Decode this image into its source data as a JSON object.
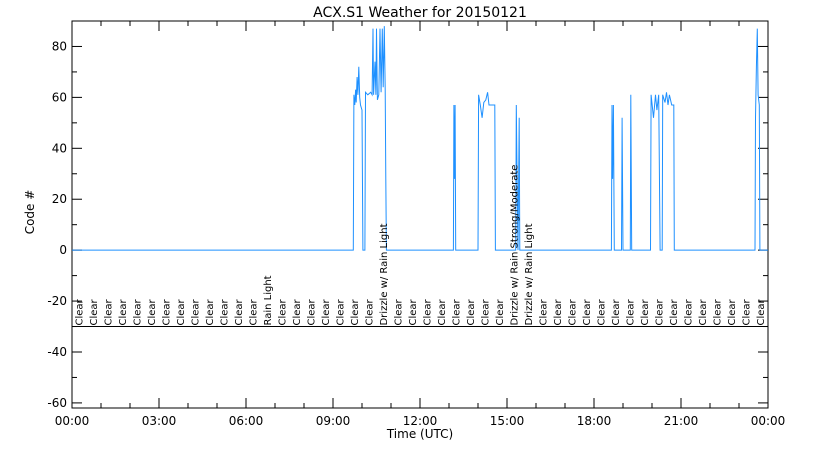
{
  "chart_data": {
    "type": "line",
    "title": "ACX.S1 Weather for 20150121",
    "xlabel": "Time (UTC)",
    "ylabel": "Code #",
    "xlim": [
      0,
      24
    ],
    "ylim": [
      -62,
      90
    ],
    "xticks": [
      {
        "v": 0,
        "label": "00:00"
      },
      {
        "v": 3,
        "label": "03:00"
      },
      {
        "v": 6,
        "label": "06:00"
      },
      {
        "v": 9,
        "label": "09:00"
      },
      {
        "v": 12,
        "label": "12:00"
      },
      {
        "v": 15,
        "label": "15:00"
      },
      {
        "v": 18,
        "label": "18:00"
      },
      {
        "v": 21,
        "label": "21:00"
      },
      {
        "v": 24,
        "label": "00:00"
      }
    ],
    "yticks": [
      {
        "v": -60,
        "label": "-60"
      },
      {
        "v": -40,
        "label": "-40"
      },
      {
        "v": -20,
        "label": "-20"
      },
      {
        "v": 0,
        "label": "0"
      },
      {
        "v": 20,
        "label": "20"
      },
      {
        "v": 40,
        "label": "40"
      },
      {
        "v": 60,
        "label": "60"
      },
      {
        "v": 80,
        "label": "80"
      }
    ],
    "separator_y": -30,
    "series": [
      {
        "color": "#1e90ff",
        "points": [
          [
            0,
            0
          ],
          [
            9.7,
            0
          ],
          [
            9.72,
            61
          ],
          [
            9.75,
            57
          ],
          [
            9.78,
            63
          ],
          [
            9.8,
            58
          ],
          [
            9.83,
            68
          ],
          [
            9.86,
            61
          ],
          [
            9.89,
            72
          ],
          [
            9.92,
            60
          ],
          [
            9.95,
            57
          ],
          [
            10.0,
            55
          ],
          [
            10.03,
            0
          ],
          [
            10.1,
            0
          ],
          [
            10.12,
            62
          ],
          [
            10.2,
            61
          ],
          [
            10.3,
            62
          ],
          [
            10.35,
            61
          ],
          [
            10.38,
            87
          ],
          [
            10.4,
            61
          ],
          [
            10.45,
            74
          ],
          [
            10.48,
            61
          ],
          [
            10.5,
            87
          ],
          [
            10.53,
            59
          ],
          [
            10.58,
            61
          ],
          [
            10.62,
            87
          ],
          [
            10.66,
            62
          ],
          [
            10.7,
            87
          ],
          [
            10.73,
            64
          ],
          [
            10.77,
            88
          ],
          [
            10.8,
            63
          ],
          [
            10.82,
            28
          ],
          [
            10.84,
            0
          ],
          [
            13.15,
            0
          ],
          [
            13.17,
            57
          ],
          [
            13.19,
            28
          ],
          [
            13.21,
            57
          ],
          [
            13.23,
            0
          ],
          [
            14.0,
            0
          ],
          [
            14.02,
            61
          ],
          [
            14.08,
            57
          ],
          [
            14.14,
            52
          ],
          [
            14.2,
            58
          ],
          [
            14.27,
            59
          ],
          [
            14.33,
            62
          ],
          [
            14.38,
            57
          ],
          [
            14.58,
            57
          ],
          [
            14.6,
            0
          ],
          [
            15.3,
            0
          ],
          [
            15.32,
            57
          ],
          [
            15.35,
            28
          ],
          [
            15.38,
            0
          ],
          [
            15.42,
            52
          ],
          [
            15.44,
            0
          ],
          [
            18.6,
            0
          ],
          [
            18.62,
            57
          ],
          [
            18.64,
            28
          ],
          [
            18.67,
            57
          ],
          [
            18.7,
            0
          ],
          [
            18.95,
            0
          ],
          [
            18.97,
            52
          ],
          [
            19.0,
            0
          ],
          [
            19.25,
            0
          ],
          [
            19.27,
            61
          ],
          [
            19.3,
            0
          ],
          [
            19.95,
            0
          ],
          [
            19.97,
            61
          ],
          [
            20.05,
            52
          ],
          [
            20.12,
            61
          ],
          [
            20.17,
            55
          ],
          [
            20.23,
            61
          ],
          [
            20.28,
            0
          ],
          [
            20.35,
            0
          ],
          [
            20.37,
            61
          ],
          [
            20.45,
            58
          ],
          [
            20.5,
            62
          ],
          [
            20.55,
            57
          ],
          [
            20.6,
            61
          ],
          [
            20.68,
            57
          ],
          [
            20.75,
            57
          ],
          [
            20.77,
            0
          ],
          [
            23.55,
            0
          ],
          [
            23.57,
            52
          ],
          [
            23.6,
            72
          ],
          [
            23.63,
            87
          ],
          [
            23.66,
            61
          ],
          [
            23.7,
            57
          ],
          [
            23.72,
            0
          ],
          [
            24,
            0
          ]
        ]
      }
    ],
    "conditions": [
      "Clear",
      "Clear",
      "Clear",
      "Clear",
      "Clear",
      "Clear",
      "Clear",
      "Clear",
      "Clear",
      "Clear",
      "Clear",
      "Clear",
      "Clear",
      "Rain Light",
      "Clear",
      "Clear",
      "Clear",
      "Clear",
      "Clear",
      "Clear",
      "Clear",
      "Drizzle w/ Rain Light",
      "Clear",
      "Clear",
      "Clear",
      "Clear",
      "Clear",
      "Clear",
      "Clear",
      "Clear",
      "Drizzle w/ Rain Strong/Moderate",
      "Drizzle w/ Rain Light",
      "Clear",
      "Clear",
      "Clear",
      "Clear",
      "Clear",
      "Clear",
      "Clear",
      "Clear",
      "Clear",
      "Clear",
      "Clear",
      "Clear",
      "Clear",
      "Clear",
      "Clear",
      "Clear"
    ],
    "condition_step_hours": 0.5,
    "grid": false
  }
}
